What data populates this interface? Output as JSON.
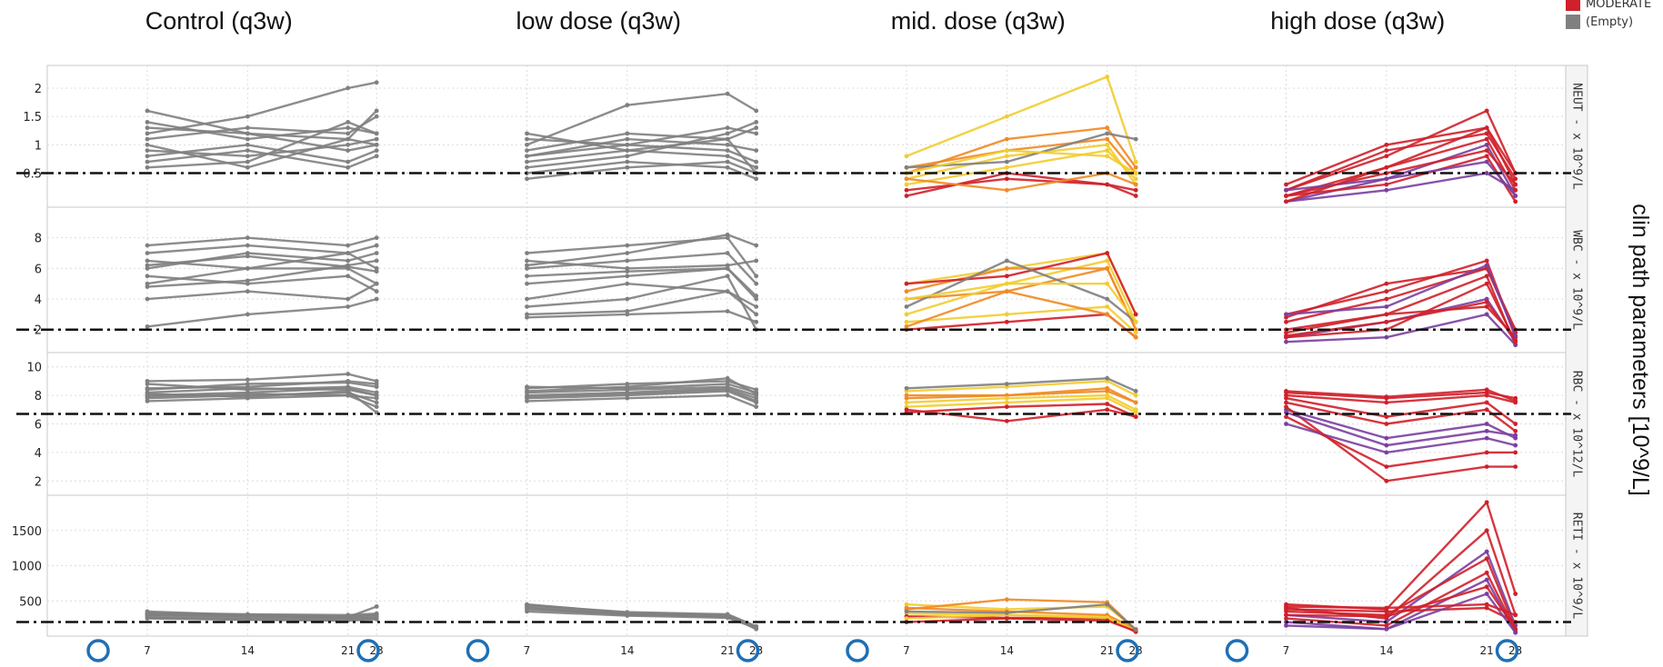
{
  "chart_data": {
    "type": "line",
    "y_axis_title": "clin path parameters [10^9/L]",
    "x_ticks": [
      7,
      14,
      21,
      23
    ],
    "columns": [
      {
        "title": "Control (q3w)",
        "palette": "grey"
      },
      {
        "title": "low dose (q3w)",
        "palette": "grey"
      },
      {
        "title": "mid. dose (q3w)",
        "palette": "warm"
      },
      {
        "title": "high dose (q3w)",
        "palette": "red"
      }
    ],
    "rows": [
      {
        "strip": "NEUT - x 10^9/L",
        "yticks": [
          0.5,
          1,
          1.5,
          2
        ],
        "ylim": [
          -0.1,
          2.4
        ],
        "threshold": 0.5
      },
      {
        "strip": "WBC - x 10^9/L",
        "yticks": [
          2,
          4,
          6,
          8
        ],
        "ylim": [
          0.5,
          10
        ],
        "threshold": 2
      },
      {
        "strip": "RBC - x 10^12/L",
        "yticks": [
          2,
          4,
          6,
          8,
          10
        ],
        "ylim": [
          1,
          11
        ],
        "threshold": 6.7
      },
      {
        "strip": "RETI - x 10^9/L",
        "yticks": [
          500,
          1000,
          1500
        ],
        "ylim": [
          0,
          2000
        ],
        "threshold": 200
      }
    ],
    "legend": [
      {
        "label": "MODERATE",
        "color": "#d0202a"
      },
      {
        "label": "(Empty)",
        "color": "#808080"
      }
    ],
    "colors": {
      "grey": "#808080",
      "red": "#d0202a",
      "purple": "#7b3fa0",
      "orange": "#f08a24",
      "yellow": "#f2cc30",
      "threshold": "#111111",
      "marker": "#1f6fb5"
    },
    "markers": [
      {
        "col": 0,
        "positions": [
          "left",
          "right"
        ]
      },
      {
        "col": 1,
        "positions": [
          "left",
          "right"
        ]
      },
      {
        "col": 2,
        "positions": [
          "left",
          "right"
        ]
      },
      {
        "col": 3,
        "positions": [
          "left",
          "right"
        ]
      }
    ],
    "panel_series": [
      [
        {
          "rows": [
            [
              [
                1.3,
                1.2,
                1.1,
                1.0
              ],
              [
                1.1,
                1.3,
                1.2,
                1.5
              ],
              [
                0.9,
                0.8,
                1.0,
                1.1
              ],
              [
                0.7,
                0.9,
                0.6,
                0.8
              ],
              [
                1.4,
                1.1,
                1.3,
                1.2
              ],
              [
                1.6,
                1.2,
                0.9,
                1.0
              ],
              [
                0.6,
                0.7,
                1.4,
                1.2
              ],
              [
                1.2,
                1.5,
                2.0,
                2.1
              ],
              [
                0.8,
                1.0,
                0.7,
                0.9
              ],
              [
                1.0,
                0.6,
                1.1,
                1.6
              ]
            ],
            [
              [
                6,
                7,
                6.5,
                7
              ],
              [
                5,
                6,
                6,
                5
              ],
              [
                7,
                7.5,
                7,
                6
              ],
              [
                4,
                4.5,
                4,
                5
              ],
              [
                6.5,
                6,
                7,
                7.5
              ],
              [
                5.5,
                5,
                5.5,
                4.5
              ],
              [
                7.5,
                8,
                7.5,
                8
              ],
              [
                2.2,
                3,
                3.5,
                4
              ],
              [
                6.2,
                6.8,
                6.1,
                5.8
              ],
              [
                4.8,
                5.2,
                6.2,
                6.5
              ]
            ],
            [
              [
                8,
                8.2,
                8.5,
                8
              ],
              [
                8.5,
                8.6,
                9,
                8.8
              ],
              [
                7.8,
                8,
                8.2,
                7.5
              ],
              [
                8.2,
                8.5,
                8.4,
                8
              ],
              [
                7.6,
                7.8,
                8,
                7.2
              ],
              [
                9,
                9.1,
                9.5,
                9
              ],
              [
                8.8,
                8.4,
                8.6,
                8.2
              ],
              [
                8.1,
                7.9,
                8.3,
                6.8
              ],
              [
                8.4,
                8.8,
                8.9,
                8.6
              ],
              [
                7.9,
                8.1,
                8,
                7.8
              ]
            ],
            [
              [
                350,
                300,
                280,
                300
              ],
              [
                300,
                280,
                260,
                280
              ],
              [
                280,
                260,
                250,
                260
              ],
              [
                320,
                300,
                270,
                420
              ],
              [
                260,
                240,
                230,
                250
              ],
              [
                300,
                290,
                280,
                300
              ],
              [
                250,
                230,
                220,
                240
              ],
              [
                330,
                310,
                300,
                320
              ]
            ]
          ]
        },
        {
          "rows": [
            [
              [
                1.0,
                1.7,
                1.9,
                1.6
              ],
              [
                0.8,
                1.0,
                0.9,
                0.7
              ],
              [
                0.6,
                0.8,
                1.2,
                1.4
              ],
              [
                0.9,
                1.2,
                1.1,
                0.5
              ],
              [
                0.7,
                0.9,
                0.8,
                0.6
              ],
              [
                1.1,
                1.0,
                1.3,
                1.2
              ],
              [
                0.5,
                0.7,
                0.6,
                0.4
              ],
              [
                0.8,
                1.1,
                1.0,
                0.9
              ],
              [
                0.4,
                0.6,
                0.7,
                0.5
              ],
              [
                1.2,
                0.9,
                1.1,
                1.3
              ]
            ],
            [
              [
                6,
                6.5,
                7,
                5
              ],
              [
                5,
                5.5,
                6,
                4
              ],
              [
                3,
                3.2,
                4.5,
                3.5
              ],
              [
                7,
                7.5,
                8,
                5.5
              ],
              [
                4,
                5,
                4.5,
                3
              ],
              [
                6.5,
                6,
                6.2,
                6.5
              ],
              [
                2.8,
                3,
                3.2,
                2.5
              ],
              [
                5.5,
                5.8,
                6,
                4.2
              ],
              [
                3.5,
                4,
                5.5,
                2
              ],
              [
                6.2,
                7,
                8.2,
                7.5
              ]
            ],
            [
              [
                8.2,
                8.4,
                8.6,
                8
              ],
              [
                7.8,
                8,
                8.3,
                7.5
              ],
              [
                8.5,
                8.8,
                9,
                8.4
              ],
              [
                8,
                8.2,
                8.5,
                7.8
              ],
              [
                7.6,
                7.8,
                8,
                7.2
              ],
              [
                8.6,
                8.5,
                8.8,
                8.2
              ],
              [
                7.9,
                8.1,
                8.4,
                7.6
              ],
              [
                8.3,
                8.6,
                9.2,
                8.1
              ]
            ],
            [
              [
                450,
                330,
                300,
                120
              ],
              [
                400,
                300,
                290,
                100
              ],
              [
                420,
                320,
                280,
                130
              ],
              [
                380,
                310,
                270,
                110
              ],
              [
                350,
                290,
                260,
                120
              ],
              [
                440,
                340,
                310,
                140
              ]
            ]
          ]
        },
        {
          "rows": [
            [
              [
                0.8,
                1.5,
                2.2,
                0.7
              ],
              [
                0.6,
                0.9,
                1.1,
                0.5
              ],
              [
                0.4,
                0.8,
                1.0,
                0.3
              ],
              [
                0.2,
                0.4,
                0.3,
                0.2
              ],
              [
                0.5,
                1.1,
                1.3,
                0.6
              ],
              [
                0.3,
                0.6,
                0.9,
                0.4
              ],
              [
                0.1,
                0.5,
                0.3,
                0.1
              ],
              [
                0.6,
                0.7,
                1.2,
                1.1
              ],
              [
                0.4,
                0.2,
                0.5,
                0.3
              ],
              [
                0.5,
                0.9,
                0.8,
                0.5
              ]
            ],
            [
              [
                5,
                6,
                7,
                3
              ],
              [
                4,
                4.5,
                6,
                2
              ],
              [
                3,
                5,
                6.5,
                2.5
              ],
              [
                2,
                2.5,
                3,
                1.5
              ],
              [
                4.5,
                6,
                6,
                2
              ],
              [
                2.5,
                3,
                3.5,
                1.8
              ],
              [
                5,
                5.5,
                7,
                3
              ],
              [
                3.5,
                6.5,
                4,
                2.5
              ],
              [
                2.2,
                4.5,
                3,
                1.5
              ],
              [
                4,
                5,
                5,
                2.5
              ]
            ],
            [
              [
                8.3,
                8.6,
                9,
                8
              ],
              [
                7.8,
                8,
                8.3,
                7.5
              ],
              [
                7.2,
                7.5,
                7.8,
                6.8
              ],
              [
                7,
                6.2,
                7,
                6.5
              ],
              [
                8,
                8,
                8.5,
                7.5
              ],
              [
                7.5,
                7.8,
                8,
                7
              ],
              [
                6.8,
                7.2,
                7.4,
                6.5
              ],
              [
                8.5,
                8.8,
                9.2,
                8.3
              ]
            ],
            [
              [
                450,
                380,
                420,
                100
              ],
              [
                380,
                520,
                480,
                90
              ],
              [
                320,
                300,
                280,
                80
              ],
              [
                280,
                260,
                250,
                60
              ],
              [
                400,
                350,
                300,
                100
              ],
              [
                250,
                300,
                260,
                80
              ],
              [
                200,
                250,
                220,
                70
              ],
              [
                350,
                330,
                450,
                90
              ]
            ]
          ]
        },
        {
          "rows": [
            [
              [
                0.2,
                0.8,
                1.6,
                0.5
              ],
              [
                0.1,
                0.6,
                1.3,
                0.3
              ],
              [
                0.0,
                0.4,
                1.0,
                0.1
              ],
              [
                0.2,
                0.9,
                1.2,
                0.4
              ],
              [
                0.1,
                0.3,
                0.8,
                0.0
              ],
              [
                0.0,
                0.2,
                0.5,
                0.2
              ],
              [
                0.3,
                1.0,
                1.3,
                0.5
              ],
              [
                0.1,
                0.5,
                0.9,
                0.3
              ],
              [
                0.2,
                0.4,
                0.7,
                0.1
              ],
              [
                0.0,
                0.6,
                1.1,
                0.2
              ]
            ],
            [
              [
                3,
                4.5,
                6.5,
                1.5
              ],
              [
                2,
                3,
                5.5,
                1
              ],
              [
                1.5,
                2.5,
                4,
                1.2
              ],
              [
                2.5,
                4,
                6,
                2
              ],
              [
                1.8,
                3,
                3.5,
                1.5
              ],
              [
                1.2,
                1.5,
                3,
                1
              ],
              [
                2.8,
                5,
                6,
                1.8
              ],
              [
                1.5,
                2,
                5,
                1.2
              ],
              [
                3,
                3.5,
                6.2,
                1.6
              ],
              [
                1.6,
                2.5,
                3.8,
                1.3
              ]
            ],
            [
              [
                8,
                7.5,
                8,
                7.5
              ],
              [
                7.5,
                6,
                7,
                5.5
              ],
              [
                7,
                5,
                6,
                5
              ],
              [
                6.5,
                3,
                4,
                4
              ],
              [
                8.2,
                7.8,
                8.2,
                7.8
              ],
              [
                6,
                4,
                5,
                4.5
              ],
              [
                7.2,
                2,
                3,
                3
              ],
              [
                7.8,
                6.5,
                7.5,
                6
              ],
              [
                6.8,
                4.5,
                5.5,
                5.2
              ],
              [
                8.3,
                7.9,
                8.4,
                7.6
              ]
            ],
            [
              [
                450,
                380,
                1900,
                600
              ],
              [
                400,
                250,
                1500,
                300
              ],
              [
                300,
                200,
                1200,
                150
              ],
              [
                350,
                300,
                1100,
                100
              ],
              [
                250,
                150,
                900,
                80
              ],
              [
                200,
                100,
                800,
                50
              ],
              [
                300,
                280,
                700,
                100
              ],
              [
                380,
                350,
                400,
                200
              ],
              [
                150,
                100,
                600,
                50
              ],
              [
                420,
                400,
                450,
                300
              ]
            ]
          ]
        }
      ]
    ]
  }
}
